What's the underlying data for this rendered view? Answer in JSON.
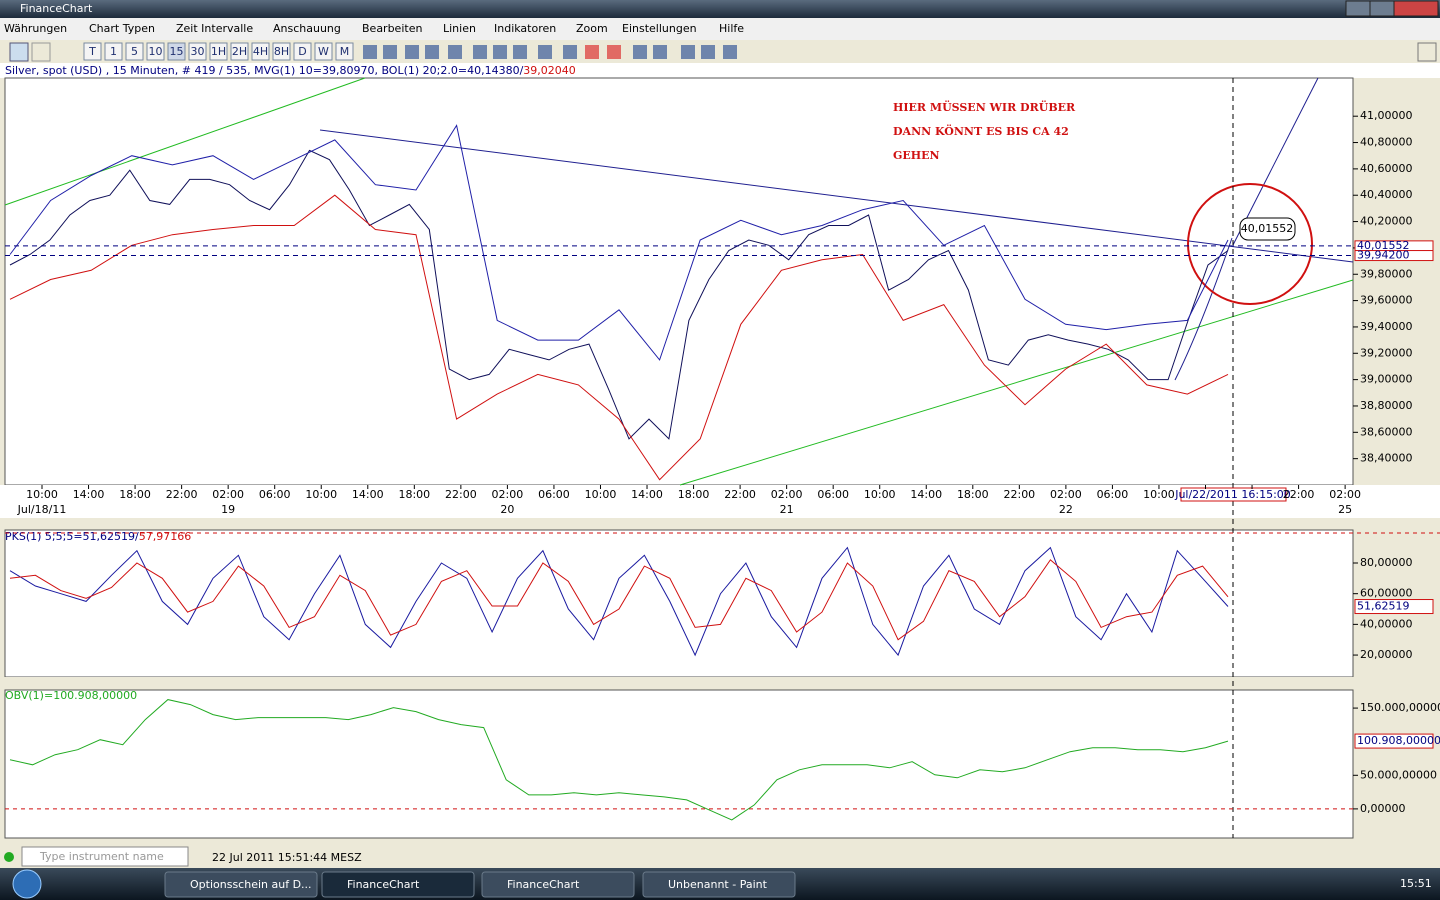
{
  "window": {
    "title": "FinanceChart"
  },
  "menu": [
    "Währungen",
    "Chart Typen",
    "Zeit Intervalle",
    "Anschauung",
    "Bearbeiten",
    "Linien",
    "Indikatoren",
    "Zoom",
    "Einstellungen",
    "Hilfe"
  ],
  "toolbar": [
    "T",
    "1",
    "5",
    "10",
    "15",
    "30",
    "1H",
    "2H",
    "4H",
    "8H",
    "D",
    "W",
    "M"
  ],
  "main_pane": {
    "info": "Silver, spot (USD) , 15 Minuten, # 419 / 535, MVG(1) 10=39,80970, BOL(1) 20;2.0=40,14380/",
    "info_red": "39,02040",
    "ylim": [
      38.2,
      41.29
    ],
    "yticks": [
      {
        "value": 38.4,
        "label": "38,40000"
      },
      {
        "value": 38.6,
        "label": "38,60000"
      },
      {
        "value": 38.8,
        "label": "38,80000"
      },
      {
        "value": 39,
        "label": "39,00000"
      },
      {
        "value": 39.2,
        "label": "39,20000"
      },
      {
        "value": 39.4,
        "label": "39,40000"
      },
      {
        "value": 39.6,
        "label": "39,60000"
      },
      {
        "value": 39.8,
        "label": "39,80000"
      },
      {
        "value": 40,
        "label": "40,00000"
      },
      {
        "value": 40.2,
        "label": "40,20000"
      },
      {
        "value": 40.4,
        "label": "40,40000"
      },
      {
        "value": 40.6,
        "label": "40,60000"
      },
      {
        "value": 40.8,
        "label": "40,80000"
      },
      {
        "value": 41,
        "label": "41,00000"
      }
    ],
    "x_labels": [
      "10:00",
      "14:00",
      "18:00",
      "22:00",
      "02:00",
      "06:00",
      "10:00",
      "14:00",
      "18:00",
      "22:00",
      "02:00",
      "06:00",
      "10:00",
      "14:00",
      "18:00",
      "22:00",
      "02:00",
      "06:00",
      "10:00",
      "14:00",
      "18:00",
      "22:00",
      "02:00",
      "06:00",
      "10:00",
      null,
      null,
      "22:00",
      "02:00"
    ],
    "day_labels": [
      "Jul/18/11",
      "19",
      "20",
      "21",
      "22",
      "25"
    ],
    "crosshair_label": "Jul/22/2011 16:15:00",
    "price_labels": [
      {
        "value": 40.01552,
        "label": "40,01552"
      },
      {
        "value": 39.942,
        "label": "39,94200"
      }
    ],
    "annotation": [
      "HIER MÜSSEN WIR DRÜBER",
      "DANN KÖNNT ES BIS CA 42",
      "GEHEN"
    ],
    "series": [
      {
        "color": "#10105a",
        "values": [
          39.87,
          39.95,
          40.06,
          40.25,
          40.36,
          40.4,
          40.59,
          40.36,
          40.33,
          40.52,
          40.52,
          40.48,
          40.36,
          40.29,
          40.48,
          40.74,
          40.67,
          40.44,
          40.17,
          40.25,
          40.33,
          40.14,
          39.08,
          39.0,
          39.04,
          39.23,
          39.19,
          39.15,
          39.23,
          39.27,
          38.92,
          38.55,
          38.7,
          38.55,
          39.45,
          39.76,
          39.98,
          40.06,
          40.02,
          39.91,
          40.1,
          40.17,
          40.17,
          40.25,
          39.68,
          39.76,
          39.91,
          39.98,
          39.68,
          39.15,
          39.11,
          39.3,
          39.34,
          39.3,
          39.27,
          39.23,
          39.15,
          39.0,
          39.0,
          39.45,
          39.87,
          39.98
        ]
      },
      {
        "color": "#2020a8",
        "values": [
          39.95,
          40.36,
          40.55,
          40.7,
          40.63,
          40.7,
          40.52,
          40.67,
          40.82,
          40.48,
          40.44,
          40.93,
          39.45,
          39.3,
          39.3,
          39.53,
          39.15,
          40.06,
          40.21,
          40.1,
          40.17,
          40.29,
          40.36,
          40.02,
          40.17,
          39.61,
          39.42,
          39.38,
          39.42,
          39.45,
          40.06
        ]
      },
      {
        "color": "#d01010",
        "values": [
          39.61,
          39.76,
          39.83,
          40.02,
          40.1,
          40.14,
          40.17,
          40.17,
          40.4,
          40.14,
          40.1,
          38.7,
          38.89,
          39.04,
          38.96,
          38.7,
          38.24,
          38.55,
          39.42,
          39.83,
          39.91,
          39.95,
          39.45,
          39.57,
          39.11,
          38.81,
          39.08,
          39.27,
          38.96,
          38.89,
          39.04
        ]
      }
    ]
  },
  "pks_pane": {
    "info": "PKS(1) 5;5;5=",
    "current": {
      "value": 51.62519,
      "label": "51,62519"
    },
    "info_sep": "/",
    "info_red": "57,97166",
    "ylim": [
      5.7,
      101.5
    ],
    "yticks": [
      {
        "value": 20,
        "label": "20,00000"
      },
      {
        "value": 40,
        "label": "40,00000"
      },
      {
        "value": 60,
        "label": "60,00000"
      },
      {
        "value": 80,
        "label": "80,00000"
      }
    ],
    "series": [
      {
        "color": "#1a1aa0",
        "values": [
          75,
          65,
          60,
          55,
          72,
          88,
          55,
          40,
          70,
          85,
          45,
          30,
          60,
          85,
          40,
          25,
          55,
          80,
          70,
          35,
          70,
          88,
          50,
          30,
          70,
          85,
          55,
          20,
          60,
          80,
          45,
          25,
          70,
          90,
          40,
          20,
          65,
          85,
          50,
          40,
          75,
          90,
          45,
          30,
          60,
          35,
          88,
          70,
          51.62519
        ]
      },
      {
        "color": "#d01010",
        "values": [
          70,
          72,
          62,
          57,
          64,
          80,
          70,
          48,
          55,
          78,
          65,
          38,
          45,
          72,
          62,
          33,
          40,
          68,
          75,
          52,
          52,
          80,
          68,
          40,
          50,
          78,
          70,
          38,
          40,
          70,
          62,
          35,
          48,
          80,
          65,
          30,
          42,
          75,
          68,
          45,
          58,
          82,
          68,
          38,
          45,
          48,
          72,
          78,
          57.97166
        ]
      }
    ]
  },
  "obv_pane": {
    "info": "OBV(1)=100.908,00000",
    "current": {
      "value": 100908,
      "label": "100.908,00000"
    },
    "ylim": [
      -43300,
      176900
    ],
    "yticks": [
      {
        "value": 0,
        "label": "0,00000"
      },
      {
        "value": 50000,
        "label": "50.000,00000"
      },
      {
        "value": 150000,
        "label": "150.000,00000"
      }
    ],
    "series": [
      {
        "color": "#22aa22",
        "values": [
          73130,
          65670,
          80600,
          88060,
          102990,
          95520,
          132840,
          162690,
          155220,
          140300,
          132840,
          135820,
          135820,
          135820,
          135820,
          132840,
          140300,
          150750,
          144780,
          132840,
          125370,
          120900,
          43280,
          20900,
          20900,
          23880,
          20900,
          23880,
          20900,
          17910,
          13430,
          -1490,
          -16420,
          5970,
          43280,
          58210,
          65670,
          65670,
          65670,
          61190,
          70150,
          50750,
          46270,
          58210,
          55220,
          61190,
          73130,
          85070,
          91040,
          91040,
          88060,
          88060,
          85070,
          91040,
          100908
        ]
      }
    ]
  },
  "status": {
    "placeholder": "Type instrument name",
    "datetime": "22 Jul 2011 15:51:44 MESZ"
  },
  "taskbar": {
    "items": [
      "Optionsschein auf D...",
      "FinanceChart",
      "FinanceChart",
      "Unbenannt - Paint"
    ],
    "clock": "15:51"
  }
}
